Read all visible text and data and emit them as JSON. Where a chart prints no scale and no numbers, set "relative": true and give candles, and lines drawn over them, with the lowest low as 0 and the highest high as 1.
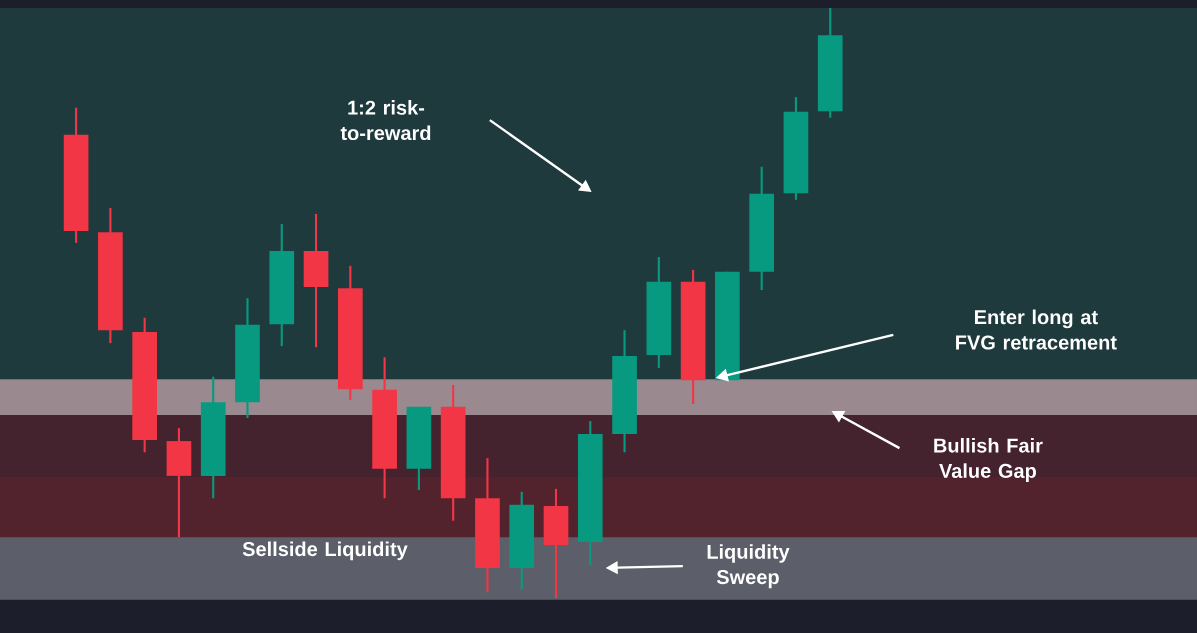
{
  "chart_data": {
    "type": "candlestick",
    "relative": true,
    "categories": [
      null,
      null,
      null,
      null,
      null,
      null,
      null,
      null,
      null,
      null,
      null,
      null,
      null,
      null,
      null,
      null,
      null,
      null,
      null,
      null,
      null,
      null,
      null
    ],
    "ohlc": [
      [
        0.785,
        0.831,
        0.602,
        0.622
      ],
      [
        0.62,
        0.661,
        0.432,
        0.454
      ],
      [
        0.451,
        0.475,
        0.247,
        0.268
      ],
      [
        0.266,
        0.288,
        0.103,
        0.207
      ],
      [
        0.207,
        0.375,
        0.169,
        0.332
      ],
      [
        0.332,
        0.508,
        0.305,
        0.463
      ],
      [
        0.464,
        0.634,
        0.427,
        0.588
      ],
      [
        0.588,
        0.651,
        0.425,
        0.527
      ],
      [
        0.525,
        0.563,
        0.336,
        0.354
      ],
      [
        0.353,
        0.408,
        0.169,
        0.219
      ],
      [
        0.219,
        0.324,
        0.183,
        0.324
      ],
      [
        0.324,
        0.361,
        0.131,
        0.169
      ],
      [
        0.169,
        0.237,
        0.01,
        0.051
      ],
      [
        0.051,
        0.18,
        0.014,
        0.158
      ],
      [
        0.156,
        0.185,
        0.0,
        0.09
      ],
      [
        0.095,
        0.3,
        0.056,
        0.278
      ],
      [
        0.278,
        0.454,
        0.247,
        0.41
      ],
      [
        0.412,
        0.578,
        0.39,
        0.536
      ],
      [
        0.536,
        0.556,
        0.329,
        0.369
      ],
      [
        0.369,
        0.553,
        0.369,
        0.553
      ],
      [
        0.553,
        0.731,
        0.522,
        0.685
      ],
      [
        0.686,
        0.849,
        0.675,
        0.824
      ],
      [
        0.825,
        1.0,
        0.814,
        0.954
      ]
    ],
    "colors": [
      "#f23645",
      "#f23645",
      "#f23645",
      "#f23645",
      "#089981",
      "#089981",
      "#089981",
      "#f23645",
      "#f23645",
      "#f23645",
      "#089981",
      "#f23645",
      "#f23645",
      "#089981",
      "#f23645",
      "#089981",
      "#089981",
      "#089981",
      "#f23645",
      "#089981",
      "#089981",
      "#089981",
      "#089981"
    ],
    "bands": [
      {
        "axis": "y",
        "from": 0.371,
        "to": 1.0,
        "label": "1:2 risk-to-reward",
        "color": "#1f3a3d"
      },
      {
        "axis": "y",
        "from": 0.059,
        "to": 0.31,
        "color": "#44232e"
      },
      {
        "axis": "y",
        "from": 0.31,
        "to": 0.371,
        "label": "Bullish Fair Value Gap",
        "color": "#9a8a8f"
      },
      {
        "axis": "y",
        "from": 0.103,
        "to": 0.205,
        "label": "Sellside Liquidity",
        "color": "#52222d"
      },
      {
        "axis": "y",
        "from": -0.003,
        "to": 0.103,
        "label": "Liquidity Sweep",
        "color": "#5c5f69"
      }
    ],
    "annotations": [
      "Enter long at FVG retracement"
    ]
  }
}
